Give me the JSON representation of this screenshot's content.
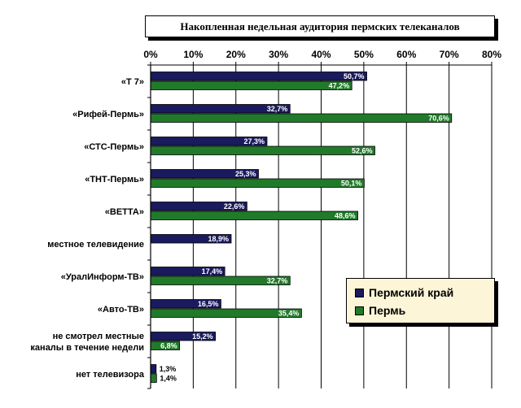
{
  "chart_data": {
    "type": "bar",
    "orientation": "horizontal",
    "title": "Накопленная недельная аудитория пермских телеканалов",
    "categories": [
      [
        "«Т 7»"
      ],
      [
        "«Рифей-Пермь»"
      ],
      [
        "«СТС-Пермь»"
      ],
      [
        "«ТНТ-Пермь»"
      ],
      [
        "«ВЕТТА»"
      ],
      [
        "местное телевидение"
      ],
      [
        "«УралИнформ-ТВ»"
      ],
      [
        "«Авто-ТВ»"
      ],
      [
        "не смотрел местные",
        "каналы в течение недели"
      ],
      [
        "нет телевизора"
      ]
    ],
    "series": [
      {
        "name": "Пермский край",
        "color": "#1a1a5e",
        "values": [
          50.7,
          32.7,
          27.3,
          25.3,
          22.6,
          18.9,
          17.4,
          16.5,
          15.2,
          1.3
        ],
        "labels": [
          "50,7%",
          "32,7%",
          "27,3%",
          "25,3%",
          "22,6%",
          "18,9%",
          "17,4%",
          "16,5%",
          "15,2%",
          "1,3%"
        ]
      },
      {
        "name": "Пермь",
        "color": "#217a2a",
        "values": [
          47.2,
          70.6,
          52.6,
          50.1,
          48.6,
          null,
          32.7,
          35.4,
          6.8,
          1.4
        ],
        "labels": [
          "47,2%",
          "70,6%",
          "52,6%",
          "50,1%",
          "48,6%",
          null,
          "32,7%",
          "35,4%",
          "6,8%",
          "1,4%"
        ]
      }
    ],
    "xlim": [
      0,
      80
    ],
    "xticks": [
      "0%",
      "10%",
      "20%",
      "30%",
      "40%",
      "50%",
      "60%",
      "70%",
      "80%"
    ],
    "grid": true,
    "legend": "bottom-right"
  }
}
